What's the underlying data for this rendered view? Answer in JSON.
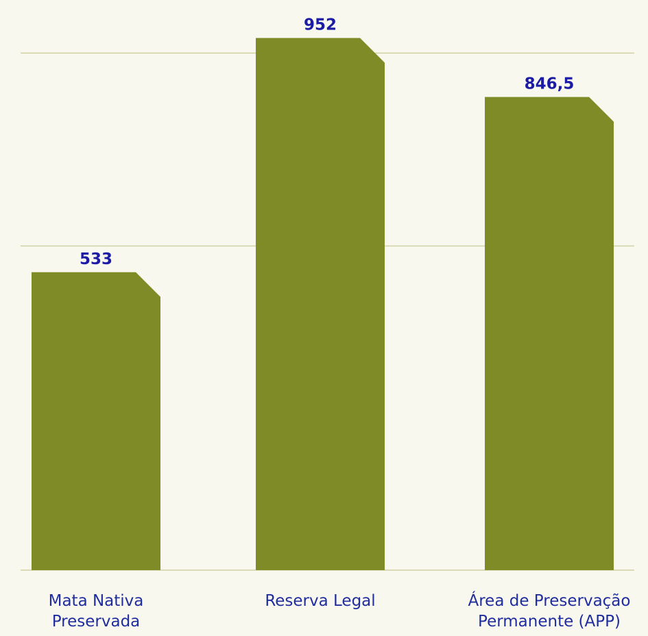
{
  "chart_data": {
    "type": "bar",
    "categories": [
      "Mata Nativa Preservada",
      "Reserva Legal",
      "Área de Preservação Permanente (APP)"
    ],
    "values": [
      533,
      952,
      846.5
    ],
    "value_labels": [
      "533",
      "952",
      "846,5"
    ],
    "color": "#7f8b27",
    "ylim": [
      0,
      1020
    ],
    "yticks": [
      0,
      580,
      925
    ],
    "grid": true
  }
}
